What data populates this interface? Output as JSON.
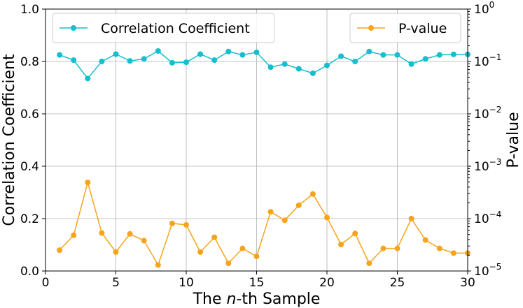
{
  "chart_data": {
    "type": "line",
    "xlabel_prefix": "The ",
    "xlabel_italic": "n",
    "xlabel_suffix": "-th Sample",
    "ylabel": "Correlation Coefficient",
    "y2label": "P-value",
    "xlim": [
      0,
      30
    ],
    "ylim": [
      0.0,
      1.0
    ],
    "y2lim_log10": [
      -5,
      0
    ],
    "x_ticks": [
      "0",
      "5",
      "10",
      "15",
      "20",
      "25",
      "30"
    ],
    "y_ticks": [
      "0.0",
      "0.2",
      "0.4",
      "0.6",
      "0.8",
      "1.0"
    ],
    "y2_ticks": [
      {
        "base": "10",
        "exp": "−5"
      },
      {
        "base": "10",
        "exp": "−4"
      },
      {
        "base": "10",
        "exp": "−3"
      },
      {
        "base": "10",
        "exp": "−2"
      },
      {
        "base": "10",
        "exp": "−1"
      },
      {
        "base": "10",
        "exp": "0"
      }
    ],
    "grid": true,
    "x": [
      1,
      2,
      3,
      4,
      5,
      6,
      7,
      8,
      9,
      10,
      11,
      12,
      13,
      14,
      15,
      16,
      17,
      18,
      19,
      20,
      21,
      22,
      23,
      24,
      25,
      26,
      27,
      28,
      29,
      30
    ],
    "series": [
      {
        "name": "Correlation Coefficient",
        "axis": "left",
        "color": "#17becf",
        "legend_position": "top-left",
        "values": [
          0.825,
          0.805,
          0.735,
          0.8,
          0.828,
          0.802,
          0.81,
          0.84,
          0.795,
          0.797,
          0.828,
          0.805,
          0.838,
          0.825,
          0.835,
          0.778,
          0.79,
          0.772,
          0.755,
          0.785,
          0.82,
          0.8,
          0.838,
          0.825,
          0.825,
          0.79,
          0.81,
          0.825,
          0.827,
          0.827
        ]
      },
      {
        "name": "P-value",
        "axis": "right",
        "color": "#f5a41b",
        "legend_position": "top-right",
        "values": [
          2.5e-05,
          4.8e-05,
          0.00049,
          5.3e-05,
          2.3e-05,
          5.1e-05,
          3.8e-05,
          1.3e-05,
          8.1e-05,
          7.6e-05,
          2.3e-05,
          4.4e-05,
          1.4e-05,
          2.7e-05,
          1.9e-05,
          0.000135,
          9.3e-05,
          0.00018,
          0.000295,
          0.000105,
          3.2e-05,
          5.2e-05,
          1.4e-05,
          2.7e-05,
          2.7e-05,
          0.0001,
          3.9e-05,
          2.7e-05,
          2.2e-05,
          2.2e-05
        ]
      }
    ]
  }
}
